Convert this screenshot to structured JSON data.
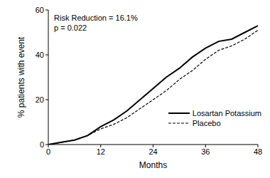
{
  "chart_data": {
    "type": "line",
    "x_label": "Months",
    "y_label": "% patients with event",
    "annotations": [
      "Risk Reduction = 16.1%",
      "p = 0.022"
    ],
    "x": [
      0,
      3,
      6,
      9,
      12,
      15,
      18,
      21,
      24,
      27,
      30,
      33,
      36,
      39,
      42,
      45,
      48
    ],
    "series": [
      {
        "name": "Losartan Potassium",
        "color": "#000000",
        "line_style": "solid",
        "values": [
          0,
          1,
          2,
          4,
          8,
          11,
          15,
          20,
          25,
          30,
          34,
          39,
          43,
          46,
          47,
          50,
          53
        ]
      },
      {
        "name": "Placebo",
        "color": "#000000",
        "line_style": "dashed",
        "values": [
          0,
          1,
          2,
          4,
          7,
          9,
          12,
          16,
          20,
          24,
          29,
          33,
          38,
          42,
          44,
          47,
          51
        ]
      }
    ],
    "xlim": [
      0,
      48
    ],
    "xticks": [
      0,
      12,
      24,
      36,
      48
    ],
    "ylim": [
      0,
      60
    ],
    "yticks": [
      0,
      20,
      40,
      60
    ],
    "grid": false,
    "legend": "lower right"
  }
}
